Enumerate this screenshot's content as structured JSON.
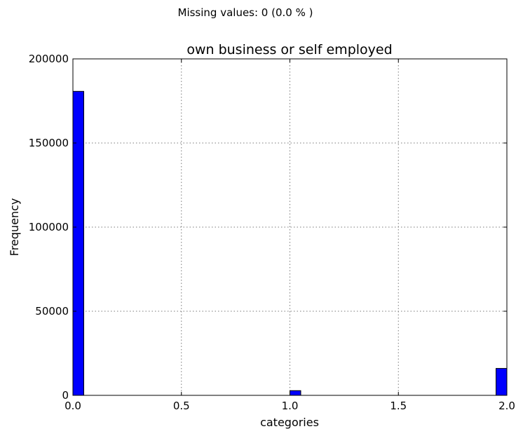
{
  "missing_note": "Missing values: 0 (0.0 % )",
  "chart_data": {
    "type": "bar",
    "title": "own business or self employed",
    "xlabel": "categories",
    "ylabel": "Frequency",
    "xlim": [
      0.0,
      2.0
    ],
    "ylim": [
      0,
      200000
    ],
    "x_ticks": [
      "0.0",
      "0.5",
      "1.0",
      "1.5",
      "2.0"
    ],
    "y_ticks": [
      "0",
      "50000",
      "100000",
      "150000",
      "200000"
    ],
    "grid": true,
    "bin_width": 0.05,
    "bars": [
      {
        "x": 0.0,
        "value": 180700
      },
      {
        "x": 1.0,
        "value": 2800
      },
      {
        "x": 1.95,
        "value": 16000
      }
    ],
    "bar_color": "#0000ff"
  }
}
